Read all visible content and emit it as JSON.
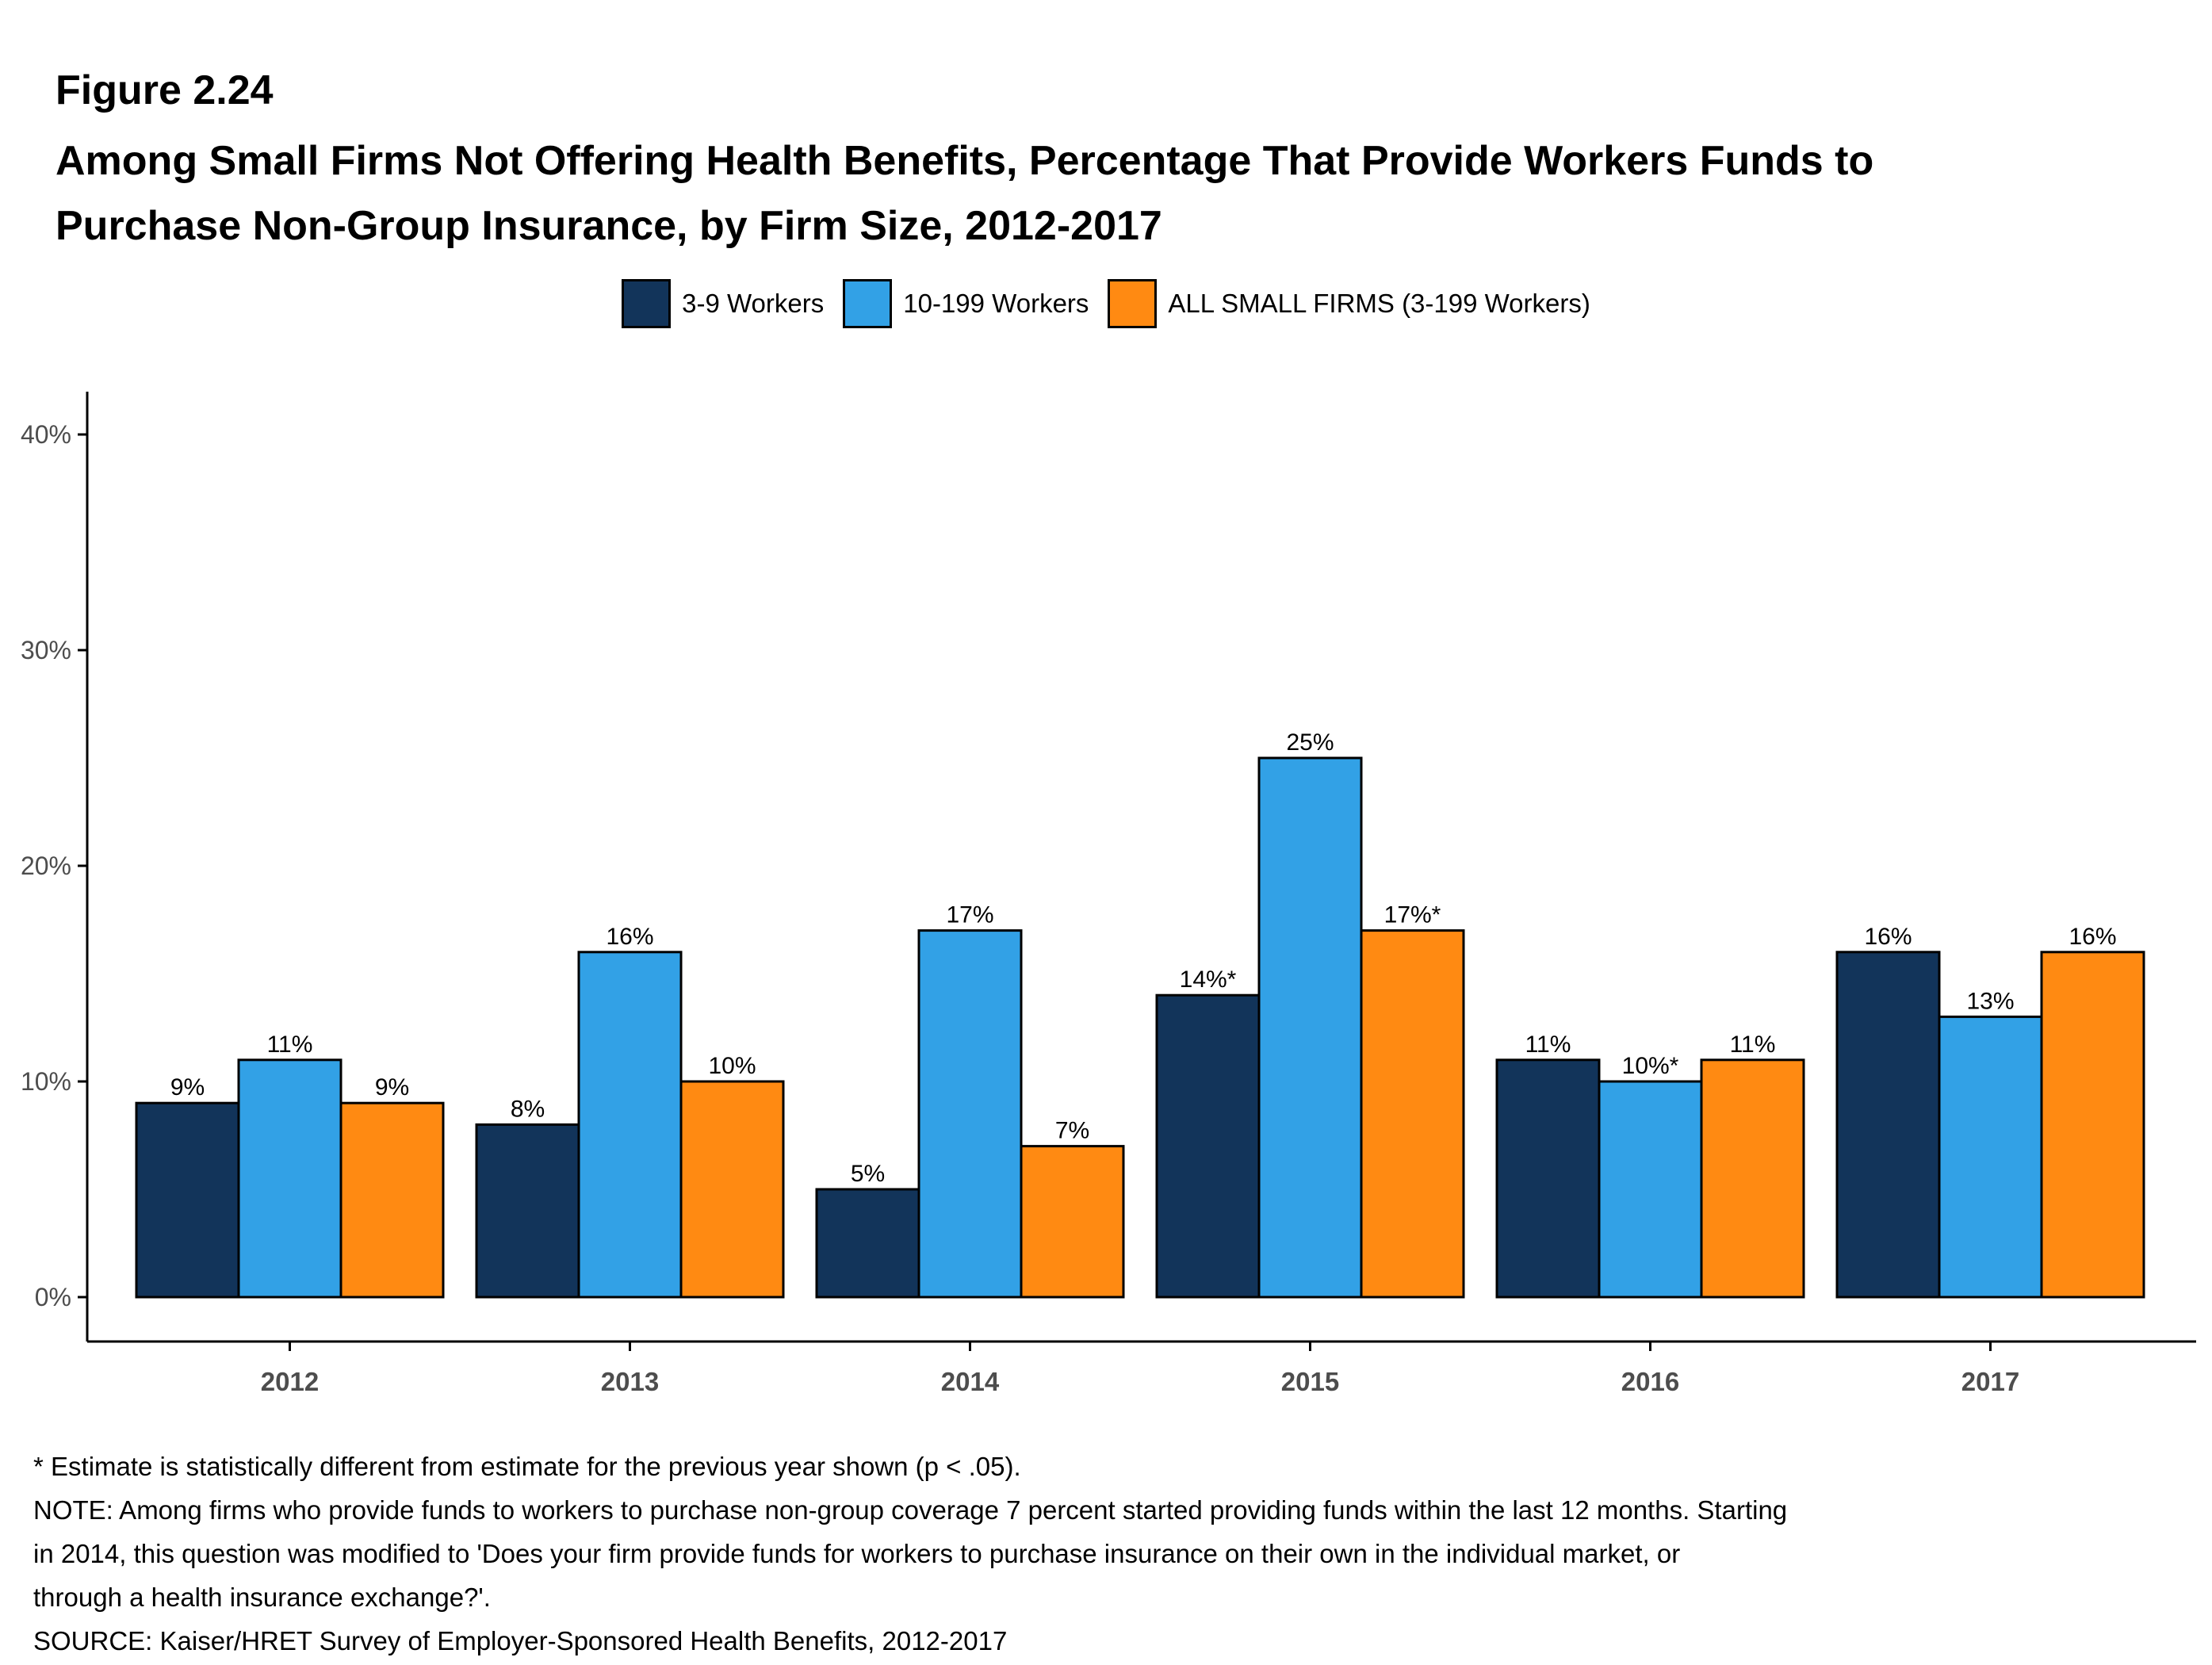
{
  "figure_label": "Figure 2.24",
  "title_lines": [
    "Among Small Firms Not Offering Health Benefits, Percentage That Provide Workers Funds to",
    "Purchase Non-Group Insurance, by Firm Size, 2012-2017"
  ],
  "chart_data": {
    "type": "bar",
    "categories": [
      "2012",
      "2013",
      "2014",
      "2015",
      "2016",
      "2017"
    ],
    "series": [
      {
        "name": "3-9 Workers",
        "color": "#12345a",
        "values": [
          9,
          8,
          5,
          14,
          11,
          16
        ],
        "labels": [
          "9%",
          "8%",
          "5%",
          "14%*",
          "11%",
          "16%"
        ]
      },
      {
        "name": "10-199 Workers",
        "color": "#32a1e6",
        "values": [
          11,
          16,
          17,
          25,
          10,
          13
        ],
        "labels": [
          "11%",
          "16%",
          "17%",
          "25%",
          "10%*",
          "13%"
        ]
      },
      {
        "name": "ALL SMALL FIRMS (3-199 Workers)",
        "color": "#ff8a12",
        "values": [
          9,
          10,
          7,
          17,
          11,
          16
        ],
        "labels": [
          "9%",
          "10%",
          "7%",
          "17%*",
          "11%",
          "16%"
        ]
      }
    ],
    "ylim": [
      0,
      40
    ],
    "yticks": [
      0,
      10,
      20,
      30,
      40
    ],
    "ytick_labels": [
      "0%",
      "10%",
      "20%",
      "30%",
      "40%"
    ],
    "xlabel": "",
    "ylabel": "",
    "legend_position": "top",
    "grid": false
  },
  "notes": [
    "* Estimate is statistically different from estimate for the previous year shown (p < .05).",
    "NOTE: Among firms who provide funds to workers to purchase non-group coverage 7 percent started providing funds within the last 12 months. Starting",
    "in 2014, this question was modified to 'Does your firm provide funds for workers to purchase insurance on their own in the individual market, or",
    "through a health insurance exchange?'.",
    "SOURCE: Kaiser/HRET Survey of Employer-Sponsored Health Benefits, 2012-2017"
  ]
}
